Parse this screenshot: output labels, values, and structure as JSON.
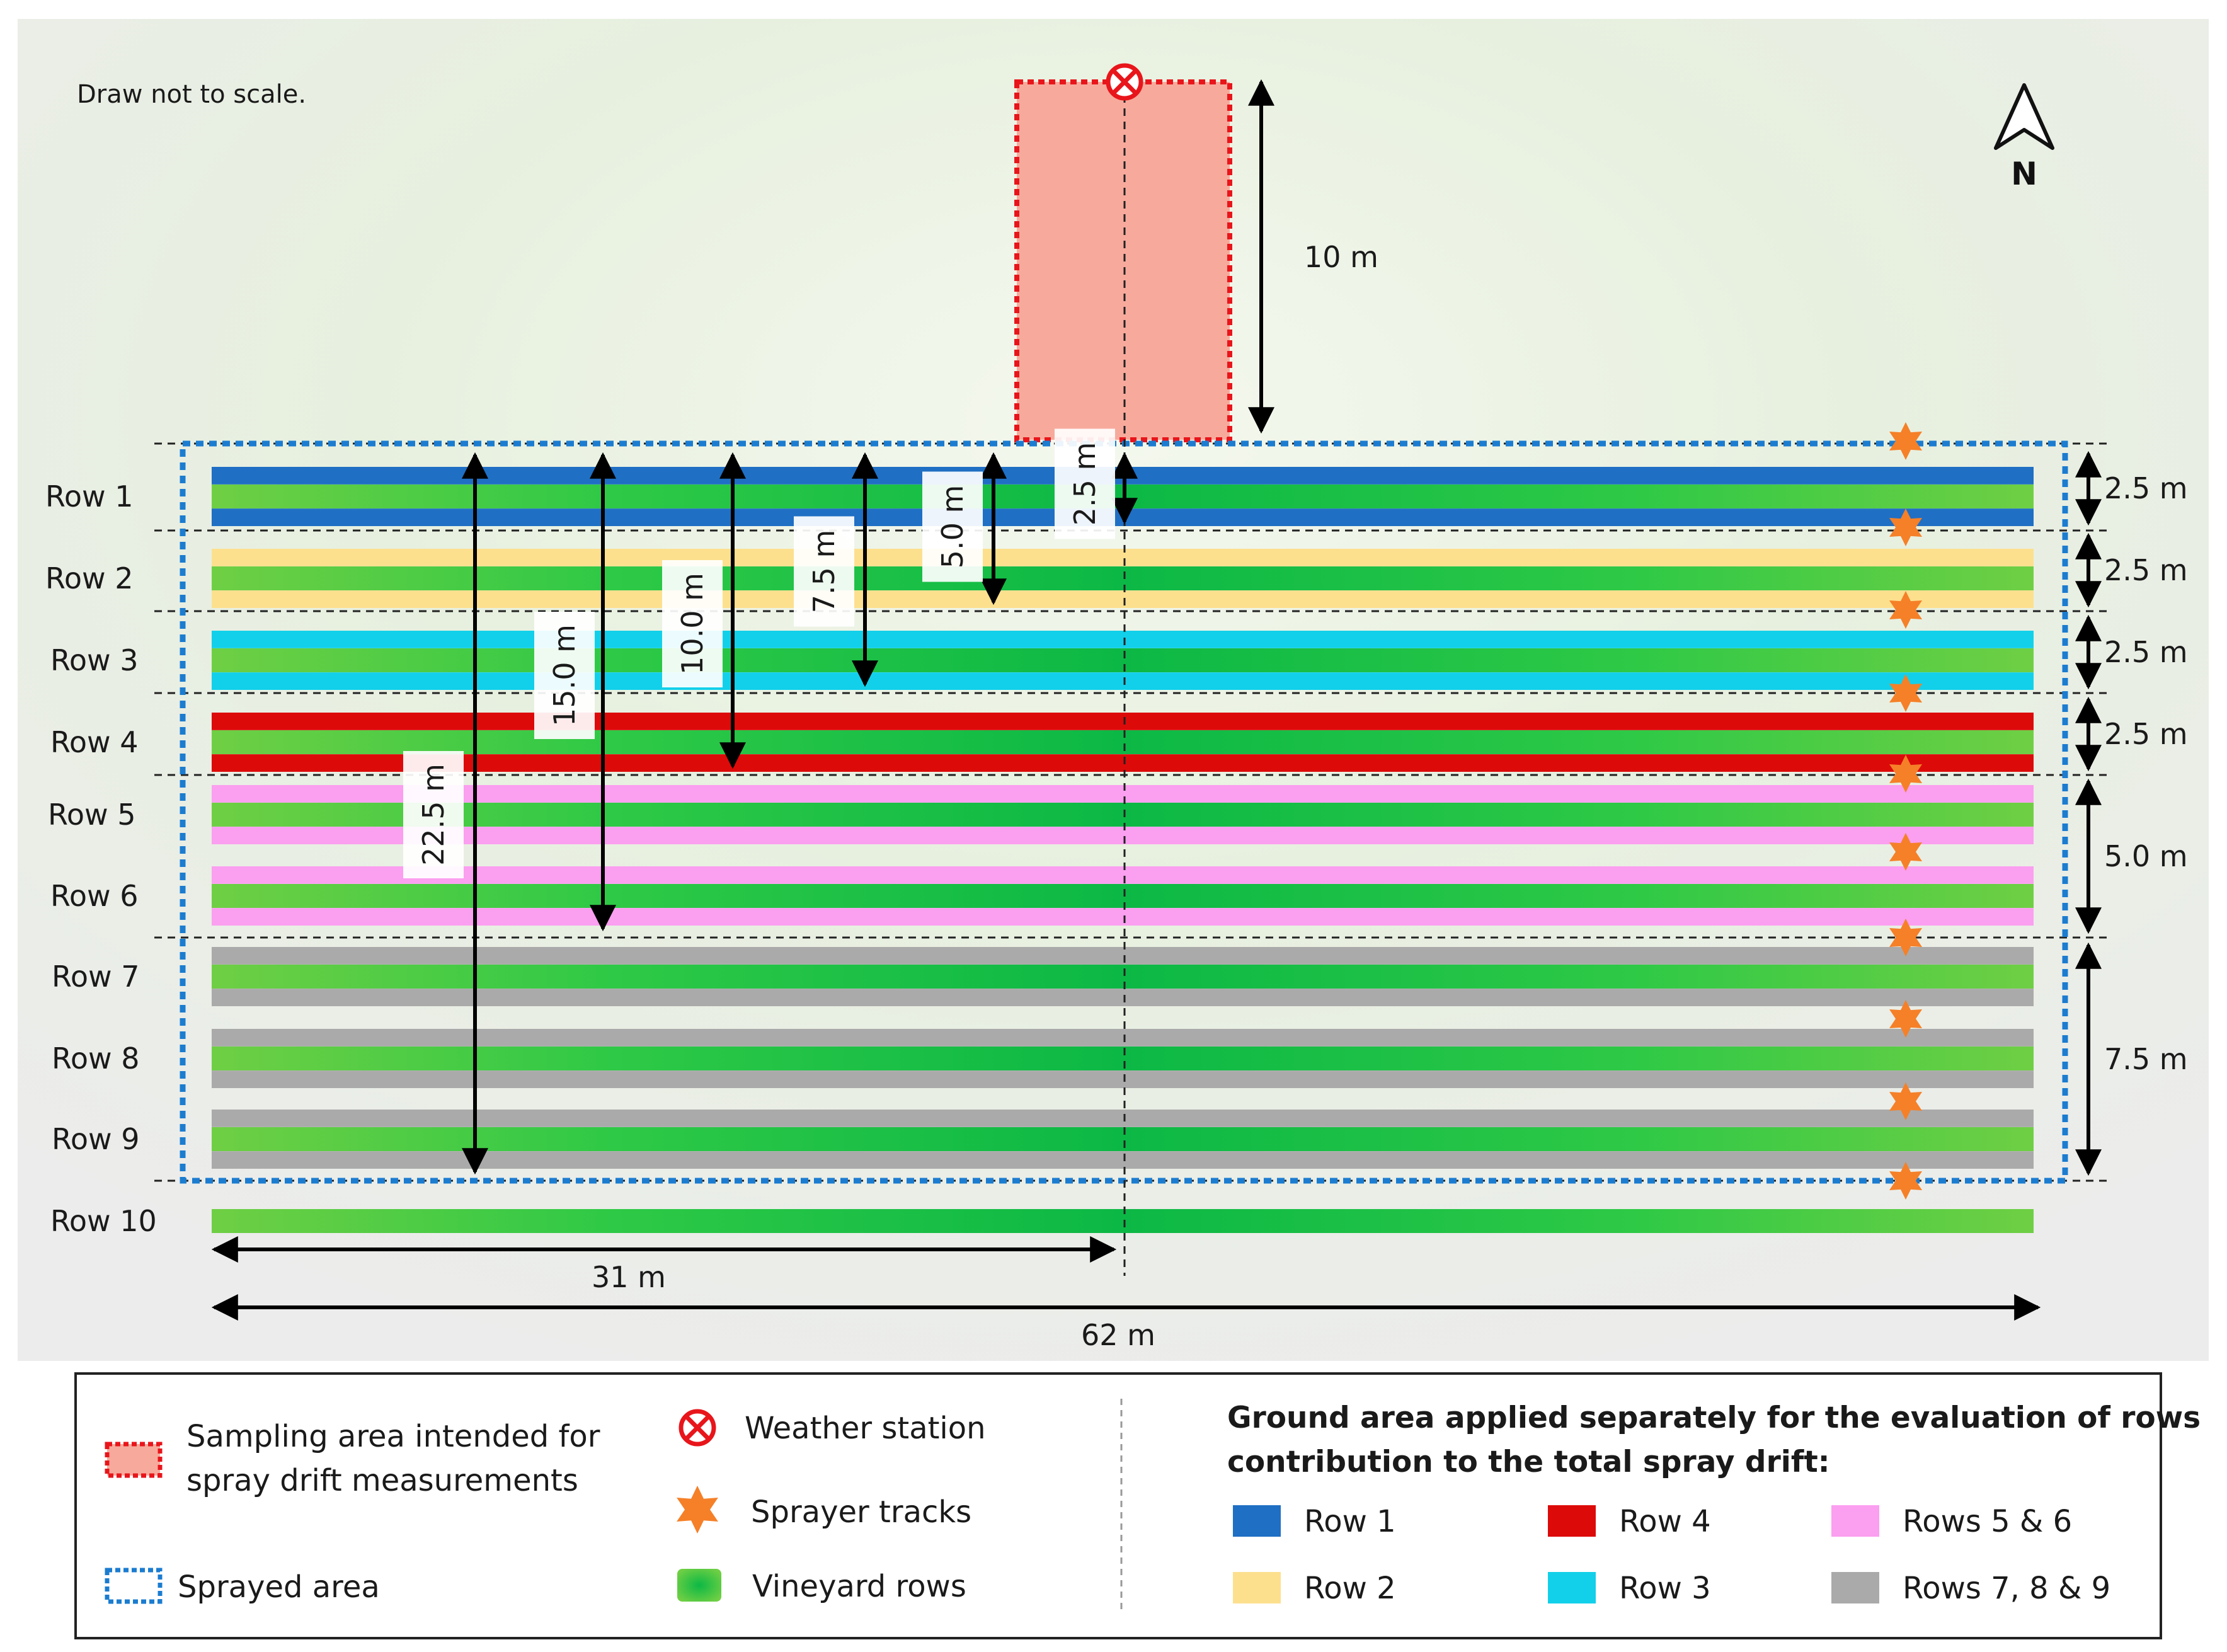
{
  "note": "Draw not to scale.",
  "north_label": "N",
  "rows": [
    {
      "label": "Row 1",
      "area_color": "#1f6fc4"
    },
    {
      "label": "Row 2",
      "area_color": "#fde08e"
    },
    {
      "label": "Row 3",
      "area_color": "#12d0ea"
    },
    {
      "label": "Row 4",
      "area_color": "#dd0a0a"
    },
    {
      "label": "Row 5",
      "area_color": "#fb9ff0"
    },
    {
      "label": "Row 6",
      "area_color": "#fb9ff0"
    },
    {
      "label": "Row 7",
      "area_color": "#aaaaaa"
    },
    {
      "label": "Row 8",
      "area_color": "#aaaaaa"
    },
    {
      "label": "Row 9",
      "area_color": "#aaaaaa"
    },
    {
      "label": "Row 10",
      "area_color": null
    }
  ],
  "right_dimensions": [
    "2.5 m",
    "2.5 m",
    "2.5 m",
    "2.5 m",
    "5.0 m",
    "7.5 m"
  ],
  "distance_labels": [
    "2.5 m",
    "5.0 m",
    "7.5 m",
    "10.0 m",
    "15.0 m",
    "22.5 m"
  ],
  "sampling_length": "10 m",
  "half_width": "31 m",
  "total_width": "62 m",
  "colors": {
    "sampling_fill": "#f7aa9c",
    "sampling_border": "#e8151b",
    "sprayed_border": "#1b7cd0",
    "tracks": "#f58028",
    "vine_light": "#6fcf44",
    "vine_dark": "#0cb845"
  },
  "legend": {
    "sampling_area": [
      "Sampling area intended for",
      "spray drift measurements"
    ],
    "sprayed_area": "Sprayed area",
    "weather_station": "Weather station",
    "sprayer_tracks": "Sprayer tracks",
    "vineyard_rows": "Vineyard rows",
    "ground_title": [
      "Ground area applied separately for the evaluation of rows",
      "contribution to the total spray drift:"
    ],
    "swatches": [
      {
        "label": "Row 1",
        "color": "#1f6fc4"
      },
      {
        "label": "Row 4",
        "color": "#dd0a0a"
      },
      {
        "label": "Rows 5 & 6",
        "color": "#fb9ff0"
      },
      {
        "label": "Row 2",
        "color": "#fde08e"
      },
      {
        "label": "Row 3",
        "color": "#12d0ea"
      },
      {
        "label": "Rows 7, 8 & 9",
        "color": "#aaaaaa"
      }
    ]
  }
}
